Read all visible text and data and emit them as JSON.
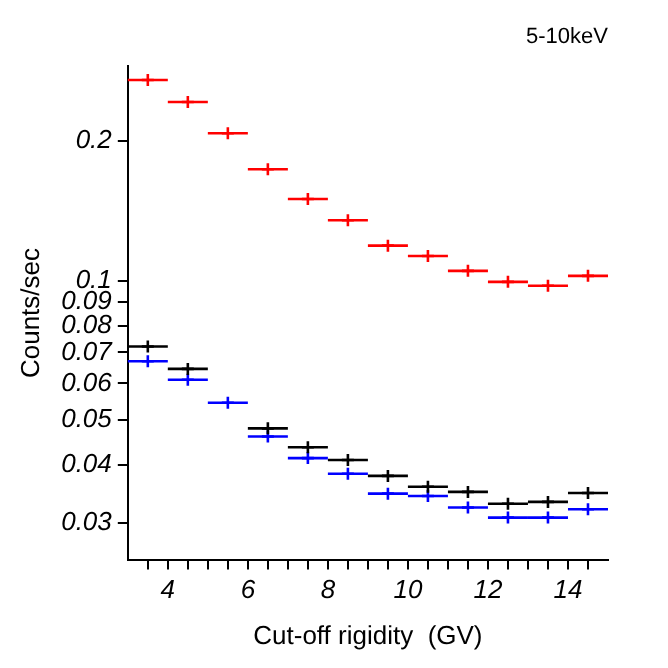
{
  "chart_data": {
    "type": "scatter",
    "title": "5-10keV",
    "xlabel": "Cut-off rigidity  (GV)",
    "ylabel": "Counts/sec",
    "x": [
      3.5,
      4.5,
      5.5,
      6.5,
      7.5,
      8.5,
      9.5,
      10.5,
      11.5,
      12.5,
      13.5,
      14.5
    ],
    "series": [
      {
        "color": "#ff0000",
        "values": [
          0.271,
          0.243,
          0.208,
          0.174,
          0.15,
          0.135,
          0.119,
          0.113,
          0.105,
          0.0994,
          0.0975,
          0.1024
        ],
        "xerrors": [
          0.5,
          0.5,
          0.5,
          0.5,
          0.5,
          0.5,
          0.5,
          0.5,
          0.5,
          0.5,
          0.5,
          0.5
        ]
      },
      {
        "color": "#000000",
        "values": [
          0.0721,
          0.0645,
          null,
          0.048,
          0.0437,
          0.041,
          0.0379,
          0.0359,
          0.035,
          0.033,
          0.0333,
          0.0348
        ],
        "xerrors": [
          0.5,
          0.5,
          null,
          0.5,
          0.5,
          0.5,
          0.5,
          0.5,
          0.5,
          0.5,
          0.5,
          0.5
        ]
      },
      {
        "color": "#0000ff",
        "values": [
          0.067,
          0.0611,
          0.0545,
          0.0461,
          0.0414,
          0.0383,
          0.0347,
          0.0343,
          0.0324,
          0.0308,
          0.0308,
          0.0321
        ],
        "xerrors": [
          0.5,
          0.5,
          0.5,
          0.5,
          0.5,
          0.5,
          0.5,
          0.5,
          0.5,
          0.5,
          0.5,
          0.5
        ]
      }
    ],
    "xlim": [
      3,
      15
    ],
    "xticks": [
      {
        "value": 3.5,
        "label": null
      },
      4,
      {
        "value": 4.5,
        "label": null
      },
      {
        "value": 5,
        "label": null
      },
      {
        "value": 5.5,
        "label": null
      },
      6,
      {
        "value": 6.5,
        "label": null
      },
      {
        "value": 7,
        "label": null
      },
      {
        "value": 7.5,
        "label": null
      },
      8,
      {
        "value": 8.5,
        "label": null
      },
      {
        "value": 9,
        "label": null
      },
      {
        "value": 9.5,
        "label": null
      },
      10,
      {
        "value": 10.5,
        "label": null
      },
      {
        "value": 11,
        "label": null
      },
      {
        "value": 11.5,
        "label": null
      },
      12,
      {
        "value": 12.5,
        "label": null
      },
      {
        "value": 13,
        "label": null
      },
      {
        "value": 13.5,
        "label": null
      },
      14,
      {
        "value": 14.5,
        "label": null
      }
    ],
    "ylim": [
      0.025,
      0.29
    ],
    "yticks": [
      0.03,
      0.04,
      0.05,
      0.06,
      0.07,
      0.08,
      0.09,
      0.1,
      0.2
    ],
    "log": "y",
    "grid": false,
    "legend": false,
    "marker": "cross"
  }
}
